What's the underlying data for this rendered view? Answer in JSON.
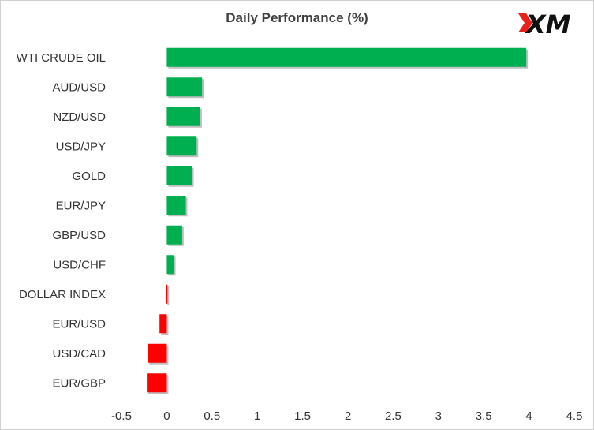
{
  "chart_data": {
    "type": "bar",
    "orientation": "horizontal",
    "title": "Daily Performance  (%)",
    "categories": [
      "WTI CRUDE OIL",
      "AUD/USD",
      "NZD/USD",
      "USD/JPY",
      "GOLD",
      "EUR/JPY",
      "GBP/USD",
      "USD/CHF",
      "DOLLAR INDEX",
      "EUR/USD",
      "USD/CAD",
      "EUR/GBP"
    ],
    "values": [
      3.97,
      0.39,
      0.37,
      0.33,
      0.28,
      0.21,
      0.17,
      0.08,
      -0.01,
      -0.08,
      -0.21,
      -0.22
    ],
    "xlim": [
      -0.5,
      4.5
    ],
    "x_ticks": [
      "-0.5",
      "0",
      "0.5",
      "1",
      "1.5",
      "2",
      "2.5",
      "3",
      "3.5",
      "4",
      "4.5"
    ],
    "xlabel": "",
    "ylabel": "",
    "grid": false,
    "positive_color": "#00b050",
    "negative_color": "#ff0000"
  },
  "logo": {
    "text": "XM",
    "accent_color": "#e8221b"
  }
}
